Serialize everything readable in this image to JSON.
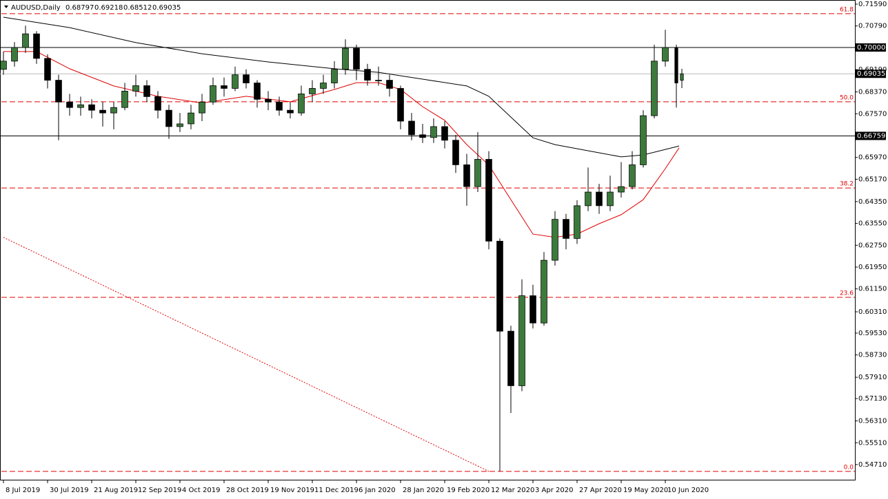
{
  "chart_data": {
    "type": "candlestick",
    "title": "AUDUSD,Daily",
    "x": [
      0,
      4,
      8,
      12,
      16,
      20,
      24,
      28,
      32,
      36,
      40,
      44,
      48,
      52,
      56,
      60,
      64,
      68,
      72,
      76,
      80,
      84,
      88,
      92,
      96,
      100,
      104,
      108,
      112,
      116,
      120,
      124,
      128,
      132,
      136,
      140,
      144,
      148,
      152,
      156,
      160,
      164,
      168,
      172,
      176,
      180,
      184,
      188,
      192,
      196,
      200,
      204,
      208,
      212,
      216,
      220,
      224,
      228,
      232,
      236,
      240,
      244,
      246
    ],
    "open": [
      0.692,
      0.695,
      0.7,
      0.705,
      0.696,
      0.688,
      0.68,
      0.678,
      0.679,
      0.677,
      0.676,
      0.678,
      0.684,
      0.686,
      0.682,
      0.677,
      0.671,
      0.672,
      0.676,
      0.68,
      0.686,
      0.685,
      0.69,
      0.687,
      0.681,
      0.68,
      0.677,
      0.676,
      0.683,
      0.685,
      0.687,
      0.692,
      0.6997,
      0.692,
      0.688,
      0.688,
      0.685,
      0.673,
      0.668,
      0.667,
      0.671,
      0.666,
      0.657,
      0.649,
      0.659,
      0.629,
      0.596,
      0.576,
      0.609,
      0.599,
      0.622,
      0.637,
      0.63,
      0.642,
      0.647,
      0.642,
      0.647,
      0.649,
      0.657,
      0.675,
      0.695,
      0.7,
      0.68797
    ],
    "high": [
      0.6985,
      0.702,
      0.708,
      0.706,
      0.6975,
      0.69,
      0.683,
      0.682,
      0.681,
      0.68,
      0.68,
      0.687,
      0.69,
      0.688,
      0.684,
      0.679,
      0.676,
      0.679,
      0.683,
      0.689,
      0.689,
      0.693,
      0.692,
      0.688,
      0.684,
      0.682,
      0.68,
      0.686,
      0.688,
      0.69,
      0.695,
      0.703,
      0.701,
      0.694,
      0.693,
      0.69,
      0.686,
      0.676,
      0.672,
      0.674,
      0.673,
      0.668,
      0.661,
      0.669,
      0.662,
      0.63,
      0.598,
      0.615,
      0.613,
      0.625,
      0.64,
      0.639,
      0.644,
      0.656,
      0.65,
      0.653,
      0.658,
      0.662,
      0.677,
      0.701,
      0.7065,
      0.701,
      0.69218
    ],
    "low": [
      0.69,
      0.693,
      0.698,
      0.694,
      0.685,
      0.666,
      0.675,
      0.675,
      0.674,
      0.671,
      0.67,
      0.677,
      0.682,
      0.68,
      0.674,
      0.6665,
      0.669,
      0.67,
      0.673,
      0.679,
      0.682,
      0.684,
      0.685,
      0.678,
      0.677,
      0.675,
      0.674,
      0.675,
      0.68,
      0.683,
      0.685,
      0.69,
      0.688,
      0.686,
      0.686,
      0.682,
      0.67,
      0.666,
      0.665,
      0.665,
      0.663,
      0.654,
      0.642,
      0.647,
      0.626,
      0.5446,
      0.566,
      0.574,
      0.597,
      0.598,
      0.62,
      0.626,
      0.628,
      0.64,
      0.639,
      0.64,
      0.645,
      0.648,
      0.656,
      0.674,
      0.693,
      0.678,
      0.68512
    ],
    "close": [
      0.695,
      0.7,
      0.705,
      0.696,
      0.688,
      0.68,
      0.678,
      0.679,
      0.677,
      0.676,
      0.678,
      0.684,
      0.686,
      0.682,
      0.677,
      0.671,
      0.672,
      0.676,
      0.68,
      0.686,
      0.685,
      0.69,
      0.687,
      0.681,
      0.68,
      0.677,
      0.676,
      0.683,
      0.685,
      0.687,
      0.692,
      0.6997,
      0.692,
      0.688,
      0.688,
      0.685,
      0.673,
      0.668,
      0.667,
      0.671,
      0.666,
      0.657,
      0.649,
      0.659,
      0.629,
      0.596,
      0.576,
      0.609,
      0.599,
      0.622,
      0.637,
      0.63,
      0.642,
      0.647,
      0.642,
      0.647,
      0.649,
      0.657,
      0.675,
      0.695,
      0.7,
      0.687,
      0.69035
    ],
    "bull_color": "#3c7a3c",
    "bear_color": "#000000",
    "xlim": [
      -1.25,
      308.75
    ],
    "ylim": [
      0.54154,
      0.71741
    ],
    "xticks": [
      {
        "value": 0,
        "label": "8 Jul 2019"
      },
      {
        "value": 16,
        "label": "30 Jul 2019"
      },
      {
        "value": 32,
        "label": "21 Aug 2019"
      },
      {
        "value": 48,
        "label": "12 Sep 2019"
      },
      {
        "value": 64,
        "label": "4 Oct 2019"
      },
      {
        "value": 80,
        "label": "28 Oct 2019"
      },
      {
        "value": 96,
        "label": "19 Nov 2019"
      },
      {
        "value": 112,
        "label": "11 Dec 2019"
      },
      {
        "value": 128,
        "label": "6 Jan 2020"
      },
      {
        "value": 144,
        "label": "28 Jan 2020"
      },
      {
        "value": 160,
        "label": "19 Feb 2020"
      },
      {
        "value": 176,
        "label": "12 Mar 2020"
      },
      {
        "value": 192,
        "label": "3 Apr 2020"
      },
      {
        "value": 208,
        "label": "27 Apr 2020"
      },
      {
        "value": 224,
        "label": "19 May 2020"
      },
      {
        "value": 240,
        "label": "10 Jun 2020"
      }
    ],
    "yticks": [
      {
        "value": 0.7159,
        "label": "0.71590"
      },
      {
        "value": 0.7079,
        "label": "0.70790"
      },
      {
        "value": 0.6919,
        "label": "0.69190"
      },
      {
        "value": 0.6837,
        "label": "0.68370"
      },
      {
        "value": 0.6757,
        "label": "0.67570"
      },
      {
        "value": 0.6597,
        "label": "0.65970"
      },
      {
        "value": 0.6517,
        "label": "0.65170"
      },
      {
        "value": 0.6435,
        "label": "0.64350"
      },
      {
        "value": 0.6355,
        "label": "0.63550"
      },
      {
        "value": 0.6275,
        "label": "0.62750"
      },
      {
        "value": 0.6195,
        "label": "0.61950"
      },
      {
        "value": 0.6115,
        "label": "0.61150"
      },
      {
        "value": 0.6031,
        "label": "0.60310"
      },
      {
        "value": 0.5953,
        "label": "0.59530"
      },
      {
        "value": 0.5873,
        "label": "0.58730"
      },
      {
        "value": 0.5791,
        "label": "0.57910"
      },
      {
        "value": 0.5713,
        "label": "0.57130"
      },
      {
        "value": 0.5631,
        "label": "0.56310"
      },
      {
        "value": 0.5551,
        "label": "0.55510"
      },
      {
        "value": 0.5471,
        "label": "0.54710"
      }
    ],
    "moving_averages": [
      {
        "color": "#e00000",
        "x": [
          0,
          12,
          24,
          40,
          56,
          72,
          88,
          104,
          120,
          128,
          136,
          144,
          152,
          160,
          168,
          176,
          184,
          192,
          200,
          208,
          216,
          224,
          232,
          240,
          245
        ],
        "values": [
          0.6985,
          0.6985,
          0.6922,
          0.6859,
          0.6821,
          0.6796,
          0.6821,
          0.6801,
          0.6846,
          0.6871,
          0.6871,
          0.6846,
          0.6783,
          0.6733,
          0.6644,
          0.6569,
          0.6442,
          0.6316,
          0.6304,
          0.6316,
          0.6354,
          0.6387,
          0.6442,
          0.6556,
          0.6632
        ]
      },
      {
        "color": "#000000",
        "x": [
          0,
          24,
          48,
          72,
          96,
          120,
          136,
          152,
          168,
          176,
          184,
          192,
          200,
          216,
          224,
          232,
          245
        ],
        "values": [
          0.7111,
          0.7073,
          0.7018,
          0.6977,
          0.6947,
          0.6922,
          0.6909,
          0.6884,
          0.6859,
          0.6821,
          0.6745,
          0.6669,
          0.6644,
          0.6614,
          0.6599,
          0.6606,
          0.6639
        ]
      }
    ],
    "level_color": "#e00000",
    "levels": [
      {
        "label": "61.8",
        "value": 0.7124
      },
      {
        "label": "50.0",
        "value": 0.6801
      },
      {
        "label": "38.2",
        "value": 0.6485
      },
      {
        "label": "23.6",
        "value": 0.6084
      },
      {
        "label": "0.0",
        "value": 0.5446
      }
    ],
    "hlines": [
      {
        "value": 0.7,
        "label": "0.70000"
      },
      0.66759
    ],
    "trendline": {
      "color": "#e00000",
      "x": [
        0,
        176
      ],
      "values": [
        0.6304,
        0.5446
      ]
    }
  }
}
